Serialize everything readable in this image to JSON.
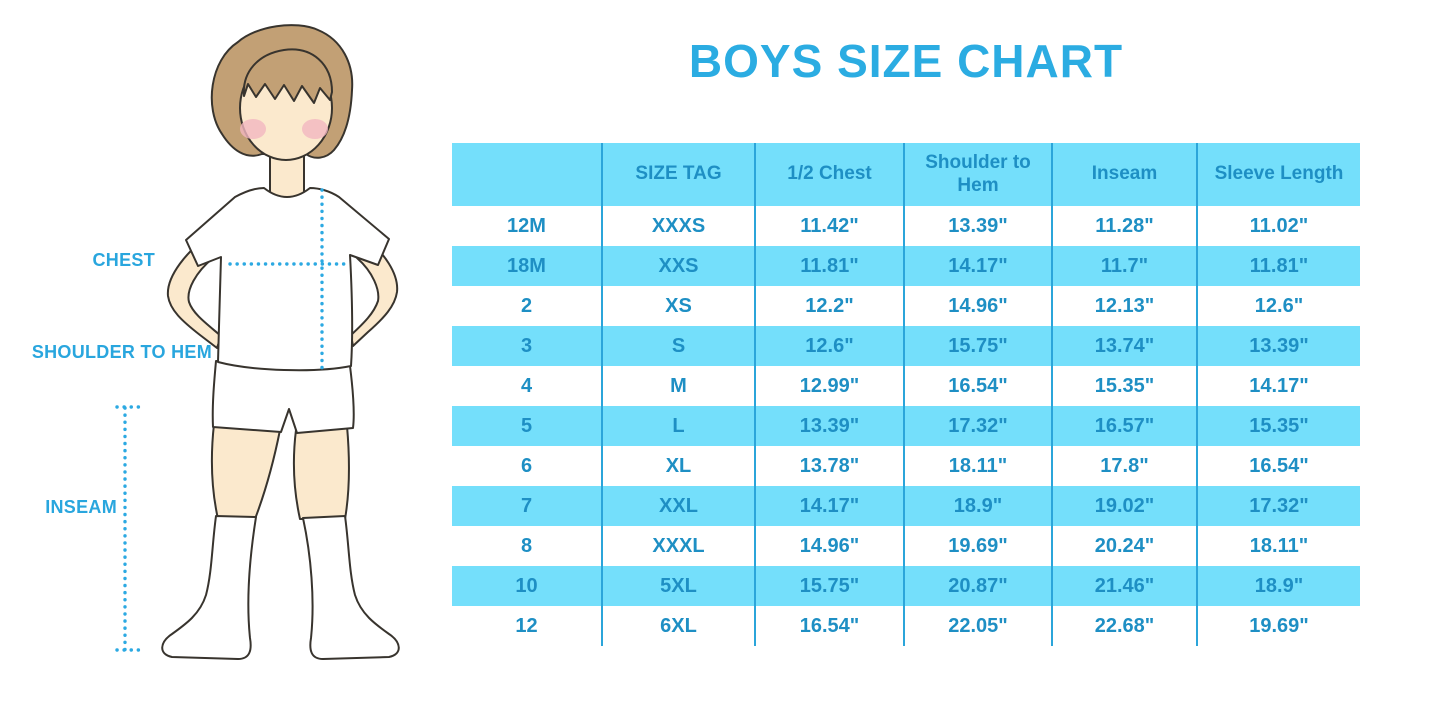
{
  "title": "BOYS SIZE CHART",
  "figure": {
    "description": "cartoon boy in white t-shirt, shorts and knee socks with measurement guides",
    "labels": [
      {
        "id": "chest",
        "text": "CHEST"
      },
      {
        "id": "shoulder_to_hem",
        "text": "SHOULDER TO HEM"
      },
      {
        "id": "inseam",
        "text": "INSEAM"
      }
    ]
  },
  "colors": {
    "title_text": "#2BACE2",
    "row_band": "#74DFFB",
    "column_divider": "#2BA5DA",
    "table_text": "#1E8FC4",
    "label_text": "#29A6DE",
    "dotted_guides": "#2CA9E2",
    "skin": "#FBE9CD",
    "hair": "#C2A075",
    "blush": "#F3B6C1"
  },
  "chart_data": {
    "type": "table",
    "title": "BOYS SIZE CHART",
    "columns": [
      "",
      "SIZE TAG",
      "1/2 Chest",
      "Shoulder to Hem",
      "Inseam",
      "Sleeve Length"
    ],
    "rows": [
      [
        "12M",
        "XXXS",
        "11.42\"",
        "13.39\"",
        "11.28\"",
        "11.02\""
      ],
      [
        "18M",
        "XXS",
        "11.81\"",
        "14.17\"",
        "11.7\"",
        "11.81\""
      ],
      [
        "2",
        "XS",
        "12.2\"",
        "14.96\"",
        "12.13\"",
        "12.6\""
      ],
      [
        "3",
        "S",
        "12.6\"",
        "15.75\"",
        "13.74\"",
        "13.39\""
      ],
      [
        "4",
        "M",
        "12.99\"",
        "16.54\"",
        "15.35\"",
        "14.17\""
      ],
      [
        "5",
        "L",
        "13.39\"",
        "17.32\"",
        "16.57\"",
        "15.35\""
      ],
      [
        "6",
        "XL",
        "13.78\"",
        "18.11\"",
        "17.8\"",
        "16.54\""
      ],
      [
        "7",
        "XXL",
        "14.17\"",
        "18.9\"",
        "19.02\"",
        "17.32\""
      ],
      [
        "8",
        "XXXL",
        "14.96\"",
        "19.69\"",
        "20.24\"",
        "18.11\""
      ],
      [
        "10",
        "5XL",
        "15.75\"",
        "20.87\"",
        "21.46\"",
        "18.9\""
      ],
      [
        "12",
        "6XL",
        "16.54\"",
        "22.05\"",
        "22.68\"",
        "19.69\""
      ]
    ],
    "units": "inches",
    "row_striping": "white / light-blue alternating, header light-blue",
    "grid": "vertical dark-blue column dividers only, no horizontal rules"
  }
}
